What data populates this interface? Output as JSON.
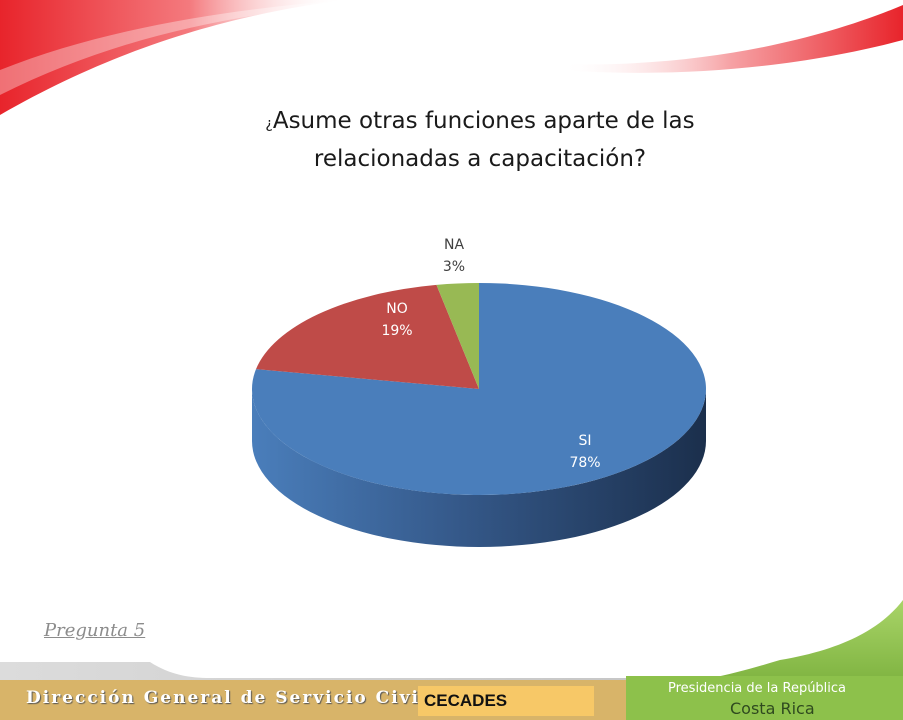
{
  "slide": {
    "title_mark": "¿",
    "title_line1": "Asume otras funciones aparte de las",
    "title_line2": "relacionadas a capacitación?",
    "question_label": "Pregunta 5",
    "footer_left": "Dirección General de Servicio Civil",
    "footer_badge": "CECADES",
    "footer_right_line1": "Presidencia de la República",
    "footer_right_line2": "Costa Rica"
  },
  "colors": {
    "si": "#4a7ebb",
    "no": "#bf4b48",
    "na": "#98b954",
    "accent_red": "#e8242b",
    "footer_gold": "#d8b469",
    "footer_green": "#8dc14b"
  },
  "chart_data": {
    "type": "pie",
    "title": "¿Asume otras funciones aparte de las relacionadas a capacitación?",
    "slices": [
      {
        "label": "SI",
        "value": 78,
        "display": "78%"
      },
      {
        "label": "NO",
        "value": 19,
        "display": "19%"
      },
      {
        "label": "NA",
        "value": 3,
        "display": "3%"
      }
    ]
  }
}
